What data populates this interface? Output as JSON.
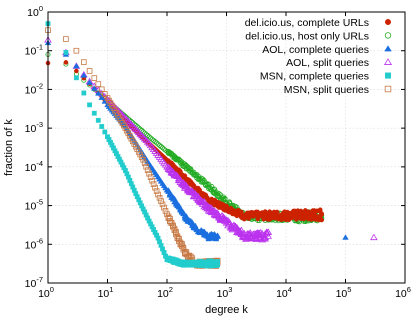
{
  "chart_data": {
    "type": "scatter",
    "title": "",
    "xlabel": "degree k",
    "ylabel": "fraction of k",
    "x_scale": "log",
    "y_scale": "log",
    "xlim": [
      1,
      1000000
    ],
    "ylim": [
      1e-07,
      1
    ],
    "x_ticks": [
      {
        "v": 1,
        "label": "10",
        "exp": "0"
      },
      {
        "v": 10,
        "label": "10",
        "exp": "1"
      },
      {
        "v": 100,
        "label": "10",
        "exp": "2"
      },
      {
        "v": 1000,
        "label": "10",
        "exp": "3"
      },
      {
        "v": 10000,
        "label": "10",
        "exp": "4"
      },
      {
        "v": 100000,
        "label": "10",
        "exp": "5"
      },
      {
        "v": 1000000,
        "label": "10",
        "exp": "6"
      }
    ],
    "y_ticks": [
      {
        "v": 1e-07,
        "label": "10",
        "exp": "-7"
      },
      {
        "v": 1e-06,
        "label": "10",
        "exp": "-6"
      },
      {
        "v": 1e-05,
        "label": "10",
        "exp": "-5"
      },
      {
        "v": 0.0001,
        "label": "10",
        "exp": "-4"
      },
      {
        "v": 0.001,
        "label": "10",
        "exp": "-3"
      },
      {
        "v": 0.01,
        "label": "10",
        "exp": "-2"
      },
      {
        "v": 0.1,
        "label": "10",
        "exp": "-1"
      },
      {
        "v": 1,
        "label": "10",
        "exp": "0"
      }
    ],
    "grid": true,
    "legend_position": "top-right",
    "series": [
      {
        "name": "del.icio.us, complete URLs",
        "marker": "circle-filled",
        "color": "#cc2200",
        "points": [
          [
            1,
            0.048
          ],
          [
            2,
            0.05
          ],
          [
            3,
            0.03
          ],
          [
            5,
            0.014
          ],
          [
            10,
            0.0045
          ],
          [
            20,
            0.0015
          ],
          [
            50,
            0.0004
          ],
          [
            100,
            0.00015
          ],
          [
            200,
            5e-05
          ],
          [
            500,
            1.3e-05
          ],
          [
            1000,
            8e-06
          ],
          [
            2000,
            5e-06
          ],
          [
            5000,
            5e-06
          ],
          [
            10000,
            5e-06
          ],
          [
            20000,
            5e-06
          ],
          [
            40000,
            5e-06
          ]
        ]
      },
      {
        "name": "del.icio.us, host only URLs",
        "marker": "circle-open",
        "color": "#22aa22",
        "points": [
          [
            1,
            0.08
          ],
          [
            2,
            0.045
          ],
          [
            3,
            0.025
          ],
          [
            5,
            0.013
          ],
          [
            10,
            0.005
          ],
          [
            20,
            0.002
          ],
          [
            50,
            0.0006
          ],
          [
            100,
            0.00025
          ],
          [
            200,
            0.0001
          ],
          [
            500,
            3e-05
          ],
          [
            1000,
            1.1e-05
          ],
          [
            2000,
            5e-06
          ],
          [
            5000,
            4.5e-06
          ],
          [
            10000,
            4.5e-06
          ],
          [
            20000,
            4.5e-06
          ],
          [
            40000,
            4.5e-06
          ]
        ]
      },
      {
        "name": "AOL, complete queries",
        "marker": "triangle-filled",
        "color": "#1a6fe0",
        "points": [
          [
            1,
            0.16
          ],
          [
            2,
            0.08
          ],
          [
            3,
            0.04
          ],
          [
            5,
            0.015
          ],
          [
            10,
            0.004
          ],
          [
            20,
            0.0011
          ],
          [
            50,
            0.00012
          ],
          [
            100,
            2.5e-05
          ],
          [
            150,
            1e-05
          ],
          [
            200,
            5e-06
          ],
          [
            300,
            2.5e-06
          ],
          [
            500,
            1.5e-06
          ],
          [
            700,
            1.5e-06
          ],
          [
            100000,
            1.5e-06
          ]
        ]
      },
      {
        "name": "AOL, split queries",
        "marker": "triangle-open",
        "color": "#bb33ee",
        "points": [
          [
            1,
            0.19
          ],
          [
            2,
            0.09
          ],
          [
            3,
            0.04
          ],
          [
            5,
            0.016
          ],
          [
            10,
            0.0055
          ],
          [
            20,
            0.0018
          ],
          [
            50,
            0.0004
          ],
          [
            100,
            0.0001
          ],
          [
            200,
            3e-05
          ],
          [
            500,
            8e-06
          ],
          [
            1000,
            3.5e-06
          ],
          [
            2000,
            1.5e-06
          ],
          [
            5000,
            1.5e-06
          ],
          [
            300000,
            1.5e-06
          ]
        ]
      },
      {
        "name": "MSN, complete queries",
        "marker": "square-filled",
        "color": "#22cccc",
        "points": [
          [
            1,
            0.5
          ],
          [
            2,
            0.09
          ],
          [
            3,
            0.02
          ],
          [
            5,
            0.004
          ],
          [
            10,
            0.0006
          ],
          [
            20,
            8e-05
          ],
          [
            30,
            2e-05
          ],
          [
            50,
            4e-06
          ],
          [
            70,
            1.5e-06
          ],
          [
            100,
            4e-07
          ],
          [
            200,
            3e-07
          ],
          [
            400,
            3e-07
          ],
          [
            700,
            3e-07
          ]
        ]
      },
      {
        "name": "MSN, split queries",
        "marker": "square-open",
        "color": "#c87a45",
        "points": [
          [
            1,
            0.34
          ],
          [
            2,
            0.2
          ],
          [
            3,
            0.1
          ],
          [
            5,
            0.03
          ],
          [
            10,
            0.006
          ],
          [
            20,
            0.001
          ],
          [
            40,
            0.00015
          ],
          [
            70,
            2e-05
          ],
          [
            100,
            6e-06
          ],
          [
            150,
            1.5e-06
          ],
          [
            200,
            6e-07
          ],
          [
            300,
            3e-07
          ],
          [
            700,
            3e-07
          ]
        ]
      }
    ]
  }
}
